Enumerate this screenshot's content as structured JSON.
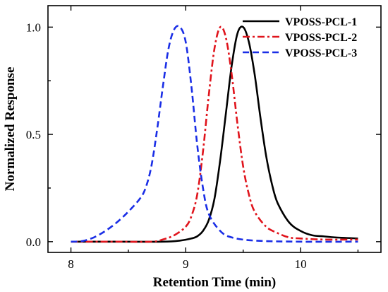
{
  "chart_data": {
    "type": "line",
    "title": "",
    "xlabel": "Retention Time (min)",
    "ylabel": "Normalized Response",
    "xlim": [
      7.8,
      10.7
    ],
    "ylim": [
      -0.05,
      1.1
    ],
    "xticks": [
      8,
      9,
      10
    ],
    "xtick_labels": [
      "8",
      "9",
      "10"
    ],
    "yticks": [
      0.0,
      0.5,
      1.0
    ],
    "ytick_labels": [
      "0.0",
      "0.5",
      "1.0"
    ],
    "grid": false,
    "legend_position": "top-right",
    "series": [
      {
        "name": "VPOSS-PCL-1",
        "color": "#000000",
        "dash": "solid",
        "x": [
          8.0,
          8.4,
          8.8,
          8.95,
          9.05,
          9.1,
          9.15,
          9.2,
          9.25,
          9.3,
          9.35,
          9.4,
          9.45,
          9.5,
          9.55,
          9.6,
          9.65,
          9.7,
          9.75,
          9.8,
          9.9,
          10.0,
          10.1,
          10.2,
          10.3,
          10.5
        ],
        "y": [
          0.0,
          0.0,
          0.0,
          0.005,
          0.015,
          0.025,
          0.05,
          0.1,
          0.2,
          0.38,
          0.6,
          0.82,
          0.97,
          1.0,
          0.93,
          0.78,
          0.58,
          0.4,
          0.27,
          0.18,
          0.09,
          0.05,
          0.03,
          0.025,
          0.02,
          0.015
        ]
      },
      {
        "name": "VPOSS-PCL-2",
        "color": "#e0141c",
        "dash": "dash-dot",
        "x": [
          8.0,
          8.4,
          8.7,
          8.8,
          8.9,
          9.0,
          9.05,
          9.1,
          9.15,
          9.2,
          9.25,
          9.3,
          9.35,
          9.4,
          9.45,
          9.5,
          9.55,
          9.6,
          9.7,
          9.8,
          9.9,
          10.0,
          10.2,
          10.5
        ],
        "y": [
          0.0,
          0.0,
          0.0,
          0.01,
          0.03,
          0.07,
          0.12,
          0.22,
          0.42,
          0.68,
          0.9,
          1.0,
          0.95,
          0.78,
          0.55,
          0.35,
          0.22,
          0.14,
          0.07,
          0.04,
          0.02,
          0.015,
          0.01,
          0.01
        ]
      },
      {
        "name": "VPOSS-PCL-3",
        "color": "#1a2ee6",
        "dash": "dashed",
        "x": [
          8.0,
          8.1,
          8.2,
          8.3,
          8.4,
          8.5,
          8.6,
          8.65,
          8.7,
          8.75,
          8.8,
          8.85,
          8.9,
          8.95,
          9.0,
          9.05,
          9.1,
          9.15,
          9.2,
          9.3,
          9.4,
          9.6,
          10.0,
          10.5
        ],
        "y": [
          0.0,
          0.003,
          0.02,
          0.05,
          0.09,
          0.14,
          0.2,
          0.25,
          0.35,
          0.52,
          0.72,
          0.9,
          0.99,
          1.0,
          0.93,
          0.72,
          0.45,
          0.25,
          0.13,
          0.05,
          0.02,
          0.005,
          0.0,
          0.0
        ]
      }
    ]
  }
}
